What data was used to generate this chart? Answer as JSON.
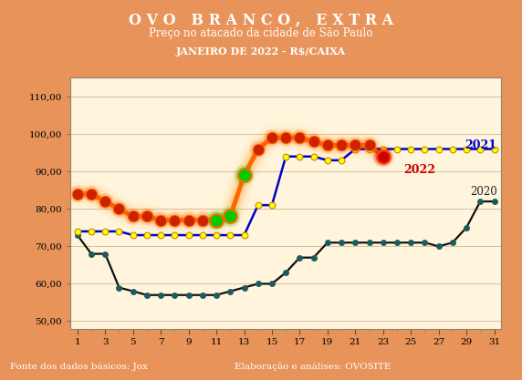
{
  "title1": "O V O   B R A N C O ,   E X T R A",
  "title2": "Preço no atacado da cidade de São Paulo",
  "title3": "JANEIRO DE 2022 - R$/CAIXA",
  "footer_left": "Fonte dos dados básicos: Jox",
  "footer_right": "Elaboração e análises: OVOSITE",
  "header_bg": "#7B3300",
  "plot_bg": "#F5C87A",
  "inner_bg": "#FFF5DC",
  "footer_bg": "#7B3300",
  "outer_bg": "#E8935A",
  "x_ticks": [
    1,
    3,
    5,
    7,
    9,
    11,
    13,
    15,
    17,
    19,
    21,
    23,
    25,
    27,
    29,
    31
  ],
  "ylim": [
    48,
    115
  ],
  "yticks": [
    50,
    60,
    70,
    80,
    90,
    100,
    110
  ],
  "ytick_labels": [
    "50,00",
    "60,00",
    "70,00",
    "80,00",
    "90,00",
    "100,00",
    "110,00"
  ],
  "series_2020": {
    "label": "2020",
    "color": "#1a5c5c",
    "linecolor": "#111111",
    "x": [
      1,
      2,
      3,
      4,
      5,
      6,
      7,
      8,
      9,
      10,
      11,
      12,
      13,
      14,
      15,
      16,
      17,
      18,
      19,
      20,
      21,
      22,
      23,
      24,
      25,
      26,
      27,
      28,
      29,
      30,
      31
    ],
    "y": [
      73,
      68,
      68,
      59,
      58,
      57,
      57,
      57,
      57,
      57,
      57,
      58,
      59,
      60,
      60,
      63,
      67,
      67,
      71,
      71,
      71,
      71,
      71,
      71,
      71,
      71,
      70,
      71,
      75,
      82,
      82
    ]
  },
  "series_2021": {
    "label": "2021",
    "color": "#0000cc",
    "marker_color": "#ffff00",
    "marker_edge": "#cc8800",
    "x": [
      1,
      2,
      3,
      4,
      5,
      6,
      7,
      8,
      9,
      10,
      11,
      12,
      13,
      14,
      15,
      16,
      17,
      18,
      19,
      20,
      21,
      22,
      23,
      24,
      25,
      26,
      27,
      28,
      29,
      30,
      31
    ],
    "y": [
      74,
      74,
      74,
      74,
      73,
      73,
      73,
      73,
      73,
      73,
      73,
      73,
      73,
      81,
      81,
      94,
      94,
      94,
      93,
      93,
      96,
      96,
      96,
      96,
      96,
      96,
      96,
      96,
      96,
      96,
      96
    ]
  },
  "series_2022": {
    "label": "2022",
    "color": "#ff4400",
    "linecolor": "#ff6600",
    "x": [
      1,
      2,
      3,
      4,
      5,
      6,
      7,
      8,
      9,
      10,
      11,
      12,
      13,
      14,
      15,
      16,
      17,
      18,
      19,
      20,
      21,
      22,
      23,
      24,
      25,
      26,
      27,
      28,
      29,
      30,
      31
    ],
    "y": [
      84,
      84,
      82,
      80,
      78,
      78,
      77,
      77,
      77,
      77,
      77,
      78,
      89,
      96,
      99,
      99,
      99,
      98,
      97,
      97,
      97,
      97,
      94,
      null,
      null,
      null,
      null,
      null,
      null,
      null,
      null
    ],
    "green_points": [
      11,
      12,
      13
    ],
    "red_points": [
      23
    ]
  }
}
